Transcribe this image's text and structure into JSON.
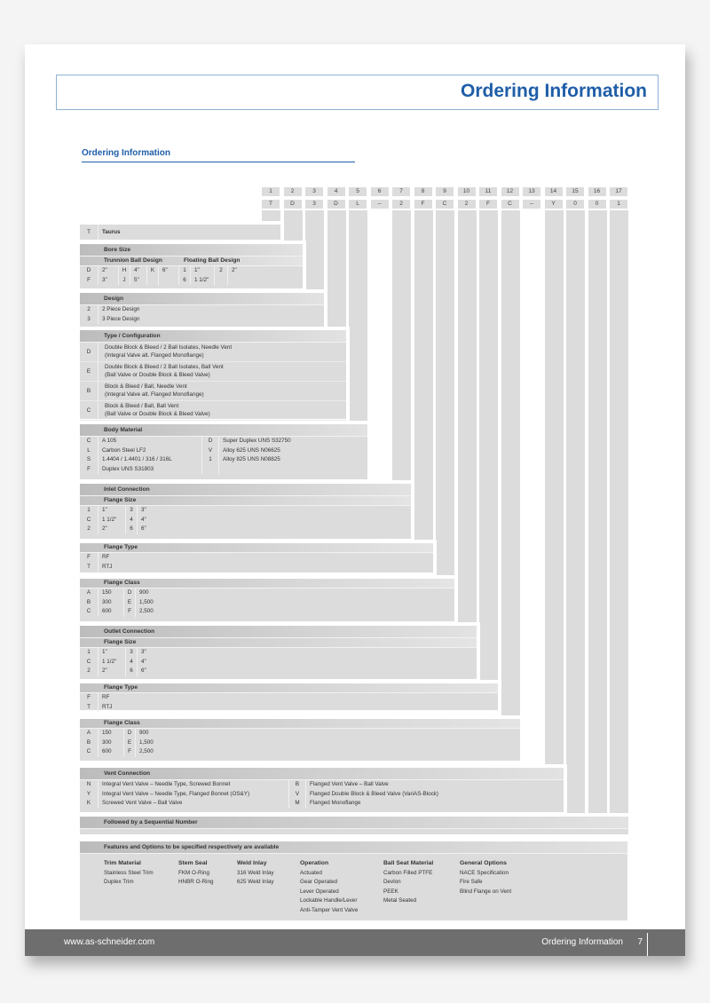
{
  "header": {
    "title": "Ordering Information"
  },
  "section_title": "Ordering Information",
  "positions": [
    "1",
    "2",
    "3",
    "4",
    "5",
    "6",
    "7",
    "8",
    "9",
    "10",
    "11",
    "12",
    "13",
    "14",
    "15",
    "16",
    "17"
  ],
  "example_code": [
    "T",
    "D",
    "3",
    "D",
    "L",
    "–",
    "2",
    "F",
    "C",
    "2",
    "F",
    "C",
    "–",
    "Y",
    "0",
    "0",
    "1"
  ],
  "sections": [
    {
      "rows": [
        [
          "T",
          "Taurus"
        ]
      ]
    },
    {
      "heading": "Bore Size",
      "subheads": [
        "Trunnion Ball Design",
        "Floating Ball Design"
      ],
      "rows": [
        [
          "D",
          "2\"",
          "H",
          "4\"",
          "K",
          "6\"",
          "1",
          "1\"",
          "2",
          "2\""
        ],
        [
          "F",
          "3\"",
          "J",
          "5\"",
          "",
          "",
          "6",
          "1 1/2\"",
          "",
          ""
        ]
      ]
    },
    {
      "heading": "Design",
      "rows": [
        [
          "2",
          "2 Piece Design"
        ],
        [
          "3",
          "3 Piece Design"
        ]
      ]
    },
    {
      "heading": "Type / Configuration",
      "rows": [
        [
          "D",
          "Double Block & Bleed / 2 Ball Isolates, Needle Vent",
          "(Integral Valve alt. Flanged Monoflange)"
        ],
        [
          "E",
          "Double Block & Bleed / 2 Ball Isolates, Ball Vent",
          "(Ball Valve or Double Block & Bleed Valve)"
        ],
        [
          "B",
          "Block & Bleed / Ball, Needle Vent",
          "(Integral Valve alt. Flanged Monoflange)"
        ],
        [
          "C",
          "Block & Bleed / Ball, Ball Vent",
          "(Ball Valve or Double Block & Bleed Valve)"
        ]
      ]
    },
    {
      "heading": "Body Material",
      "rows": [
        [
          "C",
          "A 105",
          "D",
          "Super Duplex UNS S32750"
        ],
        [
          "L",
          "Carbon Steel LF2",
          "V",
          "Alloy 625 UNS N06625"
        ],
        [
          "S",
          "1.4404 / 1.4401 / 316 / 316L",
          "1",
          "Alloy 825 UNS N08825"
        ],
        [
          "F",
          "Duplex UNS S31803",
          "",
          ""
        ]
      ]
    },
    {
      "heading": "Inlet Connection",
      "subhead": "Flange Size",
      "rows": [
        [
          "1",
          "1\"",
          "3",
          "3\""
        ],
        [
          "C",
          "1 1/2\"",
          "4",
          "4\""
        ],
        [
          "2",
          "2\"",
          "6",
          "6\""
        ]
      ]
    },
    {
      "subhead": "Flange Type",
      "rows": [
        [
          "F",
          "RF"
        ],
        [
          "T",
          "RTJ"
        ]
      ]
    },
    {
      "subhead": "Flange Class",
      "rows": [
        [
          "A",
          "150",
          "D",
          "900"
        ],
        [
          "B",
          "300",
          "E",
          "1,500"
        ],
        [
          "C",
          "600",
          "F",
          "2,500"
        ]
      ]
    },
    {
      "heading": "Outlet Connection",
      "subhead": "Flange Size",
      "rows": [
        [
          "1",
          "1\"",
          "3",
          "3\""
        ],
        [
          "C",
          "1 1/2\"",
          "4",
          "4\""
        ],
        [
          "2",
          "2\"",
          "6",
          "6\""
        ]
      ]
    },
    {
      "subhead": "Flange Type",
      "rows": [
        [
          "F",
          "RF"
        ],
        [
          "T",
          "RTJ"
        ]
      ]
    },
    {
      "subhead": "Flange Class",
      "rows": [
        [
          "A",
          "150",
          "D",
          "900"
        ],
        [
          "B",
          "300",
          "E",
          "1,500"
        ],
        [
          "C",
          "600",
          "F",
          "2,500"
        ]
      ]
    },
    {
      "heading": "Vent Connection",
      "rows": [
        [
          "N",
          "Integral Vent Valve – Needle Type, Screwed Bonnet",
          "B",
          "Flanged Vent Valve – Ball Valve"
        ],
        [
          "Y",
          "Integral Vent Valve – Needle Type, Flanged Bonnet (OS&Y)",
          "V",
          "Flanged Double Block & Bleed Valve (VariAS-Block)"
        ],
        [
          "K",
          "Screwed Vent Valve – Ball Valve",
          "M",
          "Flanged Monoflange"
        ]
      ]
    },
    {
      "heading": "Followed by a Sequential Number",
      "rows": []
    }
  ],
  "features": {
    "heading": "Features and Options to be specified respectively are available",
    "columns": [
      {
        "title": "Trim Material",
        "items": [
          "Stainless Steel Trim",
          "Duplex Trim"
        ]
      },
      {
        "title": "Stem Seal",
        "items": [
          "FKM O-Ring",
          "HNBR O-Ring"
        ]
      },
      {
        "title": "Weld Inlay",
        "items": [
          "316 Weld Inlay",
          "625 Weld Inlay"
        ]
      },
      {
        "title": "Operation",
        "items": [
          "Actuated",
          "Gear Operated",
          "Lever Operated",
          "Lockable Handle/Lever",
          "Anti-Tamper Vent Valve"
        ]
      },
      {
        "title": "Ball Seat Material",
        "items": [
          "Carbon Filled PTFE",
          "Devlon",
          "PEEK",
          "Metal Seated"
        ]
      },
      {
        "title": "General Options",
        "items": [
          "NACE Specification",
          "Fire Safe",
          "Blind Flange on Vent"
        ]
      }
    ]
  },
  "footer": {
    "url": "www.as-schneider.com",
    "title": "Ordering Information",
    "page": "7"
  },
  "colors": {
    "accent": "#1f5ea8",
    "footer": "#6e6e6e",
    "cell": "#dcdcdc"
  }
}
